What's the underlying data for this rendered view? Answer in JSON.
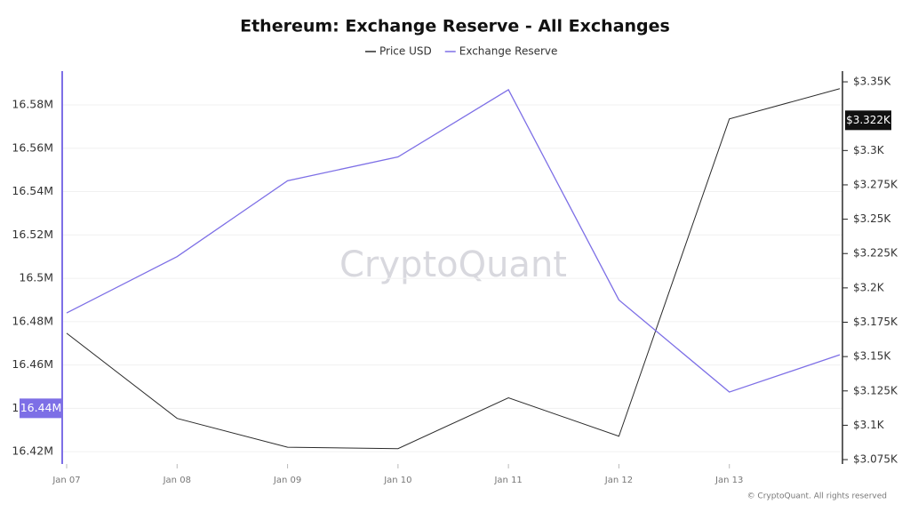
{
  "chart_data": {
    "type": "line",
    "title": "Ethereum: Exchange Reserve - All Exchanges",
    "watermark": "CryptoQuant",
    "credit": "© CryptoQuant. All rights reserved",
    "categories": [
      "Jan 07",
      "Jan 08",
      "Jan 09",
      "Jan 10",
      "Jan 11",
      "Jan 12",
      "Jan 13",
      null
    ],
    "series": [
      {
        "name": "Price USD",
        "color": "#2b2b2b",
        "axis": "y2",
        "values": [
          3167,
          3105,
          3084,
          3083,
          3120,
          3092,
          3323,
          3345
        ],
        "marker_label": {
          "value": 3322,
          "label": "$3.322K"
        }
      },
      {
        "name": "Exchange Reserve",
        "color": "#7d6fe6",
        "axis": "y",
        "values": [
          16484000,
          16510000,
          16545000,
          16556000,
          16587000,
          16490000,
          16447500,
          16464700
        ],
        "marker_label": {
          "value": 16440000,
          "label": "16.44M"
        }
      }
    ],
    "ylim": [
      16414300,
      16595600
    ],
    "yticks": [
      {
        "value": 16420000,
        "label": "16.42M"
      },
      {
        "value": 16440000,
        "label": "16.44M"
      },
      {
        "value": 16460000,
        "label": "16.46M"
      },
      {
        "value": 16480000,
        "label": "16.48M"
      },
      {
        "value": 16500000,
        "label": "16.5M"
      },
      {
        "value": 16520000,
        "label": "16.52M"
      },
      {
        "value": 16540000,
        "label": "16.54M"
      },
      {
        "value": 16560000,
        "label": "16.56M"
      },
      {
        "value": 16580000,
        "label": "16.58M"
      }
    ],
    "y2lim": [
      3071.8,
      3357.8
    ],
    "y2ticks": [
      {
        "value": 3075,
        "label": "$3.075K"
      },
      {
        "value": 3100,
        "label": "$3.1K"
      },
      {
        "value": 3125,
        "label": "$3.125K"
      },
      {
        "value": 3150,
        "label": "$3.15K"
      },
      {
        "value": 3175,
        "label": "$3.175K"
      },
      {
        "value": 3200,
        "label": "$3.2K"
      },
      {
        "value": 3225,
        "label": "$3.225K"
      },
      {
        "value": 3250,
        "label": "$3.25K"
      },
      {
        "value": 3275,
        "label": "$3.275K"
      },
      {
        "value": 3300,
        "label": "$3.3K"
      },
      {
        "value": 3350,
        "label": "$3.35K"
      }
    ],
    "grid": true
  }
}
